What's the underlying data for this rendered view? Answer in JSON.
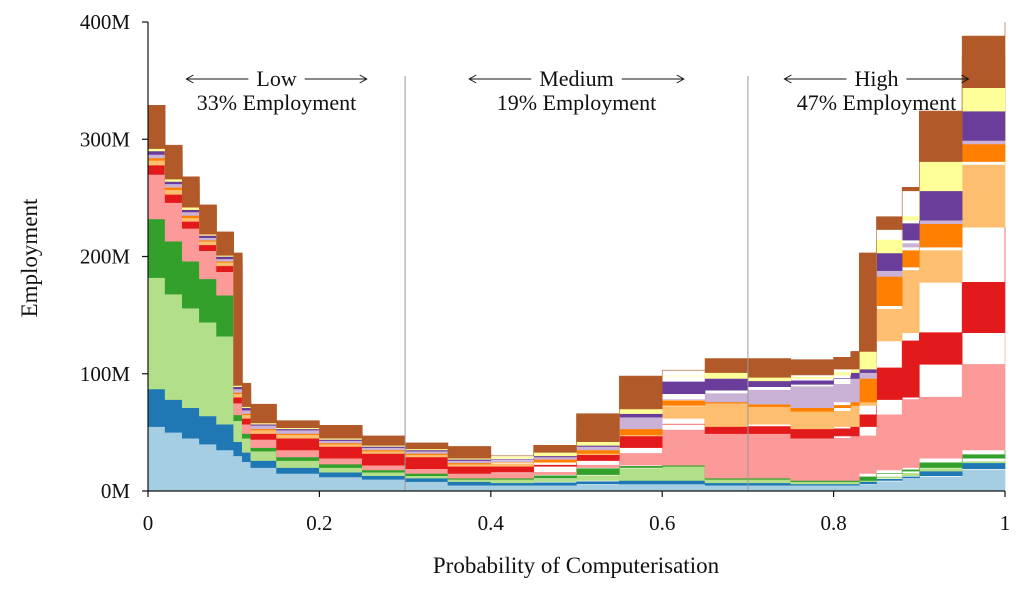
{
  "chart_data": {
    "type": "area",
    "stacked": true,
    "xlabel": "Probability of Computerisation",
    "ylabel": "Employment",
    "xlim": [
      0,
      1
    ],
    "ylim": [
      0,
      400
    ],
    "x_ticks": [
      0,
      0.2,
      0.4,
      0.6,
      0.8,
      1
    ],
    "x_tick_labels": [
      "0",
      "0.2",
      "0.4",
      "0.6",
      "0.8",
      "1"
    ],
    "y_ticks": [
      0,
      100,
      200,
      300,
      400
    ],
    "y_tick_labels": [
      "0M",
      "100M",
      "200M",
      "300M",
      "400M"
    ],
    "dividers": [
      0.3,
      0.7
    ],
    "regions": [
      {
        "label": "Low",
        "employment": "33% Employment",
        "x_center": 0.15
      },
      {
        "label": "Medium",
        "employment": "19% Employment",
        "x_center": 0.5
      },
      {
        "label": "High",
        "employment": "47% Employment",
        "x_center": 0.85
      }
    ],
    "x": [
      0,
      0.02,
      0.04,
      0.06,
      0.08,
      0.1,
      0.11,
      0.12,
      0.15,
      0.2,
      0.25,
      0.3,
      0.35,
      0.4,
      0.45,
      0.5,
      0.55,
      0.6,
      0.65,
      0.7,
      0.75,
      0.8,
      0.82,
      0.83,
      0.85,
      0.88,
      0.9,
      0.95,
      1.0
    ],
    "series": [
      {
        "color": "#a6cee3",
        "values": [
          60,
          55,
          50,
          45,
          40,
          35,
          30,
          25,
          20,
          15,
          12,
          10,
          8,
          5,
          5,
          5,
          6,
          6,
          6,
          5,
          5,
          5,
          5,
          5,
          8,
          10,
          12,
          18,
          24
        ]
      },
      {
        "color": "#1f78b4",
        "values": [
          35,
          32,
          28,
          26,
          24,
          22,
          12,
          8,
          6,
          5,
          4,
          3,
          3,
          3,
          2,
          3,
          3,
          3,
          3,
          2,
          2,
          1,
          1,
          1,
          1,
          1,
          1,
          1,
          1
        ]
      },
      {
        "color": "#b2df8a",
        "values": [
          100,
          95,
          90,
          85,
          80,
          75,
          18,
          12,
          8,
          6,
          4,
          3,
          2,
          2,
          3,
          5,
          10,
          12,
          12,
          3,
          3,
          2,
          2,
          2,
          3,
          4,
          4,
          5,
          6
        ]
      },
      {
        "color": "#33a02c",
        "values": [
          60,
          50,
          45,
          40,
          37,
          35,
          5,
          4,
          3,
          3,
          3,
          2,
          2,
          1,
          1,
          1,
          1,
          1,
          1,
          1,
          1,
          1,
          1,
          1,
          3,
          3,
          3,
          4,
          4
        ]
      },
      {
        "color": "#fb9a99",
        "values": [
          45,
          38,
          33,
          28,
          24,
          20,
          10,
          8,
          7,
          6,
          5,
          4,
          4,
          4,
          5,
          8,
          12,
          30,
          35,
          38,
          38,
          36,
          38,
          38,
          50,
          60,
          60,
          80,
          100
        ]
      },
      {
        "color": "#e31a1c",
        "values": [
          10,
          8,
          7,
          6,
          5,
          5,
          5,
          5,
          5,
          10,
          10,
          10,
          10,
          6,
          5,
          4,
          5,
          5,
          5,
          6,
          8,
          8,
          8,
          8,
          40,
          50,
          55,
          70,
          90
        ]
      },
      {
        "color": "#fdbf6f",
        "values": [
          5,
          4,
          4,
          3,
          3,
          3,
          3,
          3,
          3,
          3,
          2,
          2,
          2,
          2,
          3,
          5,
          10,
          15,
          15,
          20,
          15,
          15,
          18,
          18,
          50,
          60,
          70,
          100,
          130
        ]
      },
      {
        "color": "#ff7f00",
        "values": [
          2,
          2,
          2,
          2,
          1,
          1,
          1,
          1,
          1,
          1,
          1,
          1,
          1,
          1,
          1,
          1,
          1,
          1,
          1,
          1,
          2,
          3,
          3,
          3,
          3,
          3,
          3,
          3,
          3
        ]
      },
      {
        "color": "#cab2d6",
        "values": [
          4,
          3,
          3,
          3,
          2,
          2,
          3,
          3,
          3,
          3,
          2,
          2,
          2,
          2,
          2,
          3,
          5,
          5,
          5,
          10,
          15,
          20,
          20,
          20,
          25,
          20,
          20,
          15,
          12
        ]
      },
      {
        "color": "#6a3d9a",
        "values": [
          3,
          3,
          2,
          2,
          2,
          2,
          2,
          2,
          1,
          1,
          1,
          1,
          1,
          1,
          2,
          3,
          10,
          15,
          15,
          10,
          5,
          5,
          5,
          5,
          5,
          3,
          3,
          3,
          3
        ]
      },
      {
        "color": "#ffff99",
        "values": [
          2,
          2,
          2,
          2,
          1,
          1,
          1,
          1,
          1,
          1,
          1,
          1,
          1,
          1,
          1,
          1,
          3,
          5,
          5,
          5,
          3,
          3,
          3,
          3,
          15,
          20,
          25,
          25,
          15
        ]
      },
      {
        "color": "#b15928",
        "values": [
          3,
          3,
          2,
          2,
          2,
          2,
          2,
          2,
          2,
          2,
          2,
          2,
          2,
          2,
          3,
          3,
          4,
          5,
          10,
          12,
          15,
          15,
          15,
          15,
          20,
          25,
          25,
          20,
          12
        ]
      }
    ]
  }
}
